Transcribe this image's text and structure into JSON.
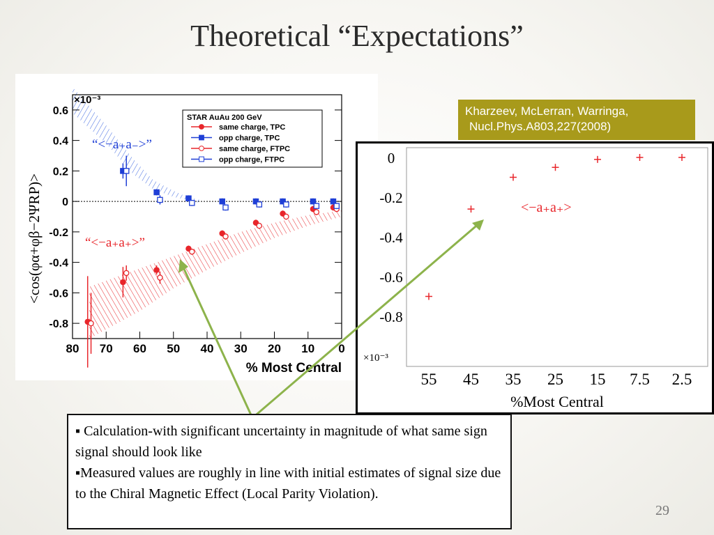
{
  "slide": {
    "title": "Theoretical “Expectations”",
    "page_number": "29",
    "reference": {
      "line1": "Kharzeev, McLerran, Warringa,",
      "line2": "Nucl.Phys.A803,227(2008)"
    },
    "notes": [
      "▪ Calculation-with significant uncertainty in magnitude of what same sign signal should look like",
      "▪Measured values are roughly in line with initial estimates of signal size due to the Chiral Magnetic Effect (Local Parity Violation)."
    ],
    "colors": {
      "reference_bg": "#a89a1b",
      "same_charge": "#e8262b",
      "opp_charge": "#1f3fd6",
      "arrow": "#8db34b"
    }
  },
  "chart_data": [
    {
      "type": "scatter",
      "ylabel": "<cos(φα+φβ−2ΨRP)>",
      "xlabel": "% Most Central",
      "y_multiplier_label": "×10⁻³",
      "xlim": [
        80,
        0
      ],
      "ylim": [
        -0.9,
        0.7
      ],
      "x_ticks": [
        "80",
        "70",
        "60",
        "50",
        "40",
        "30",
        "20",
        "10",
        "0"
      ],
      "y_ticks": [
        "0.6",
        "0.4",
        "0.2",
        "0",
        "-0.2",
        "-0.4",
        "-0.6",
        "-0.8"
      ],
      "legend": {
        "title": "STAR  AuAu 200 GeV",
        "entries": [
          "same charge, TPC",
          "opp charge, TPC",
          "same charge, FTPC",
          "opp charge, FTPC"
        ]
      },
      "annotations": {
        "opp": "“<−a₊a₋>”",
        "same": "“<−a₊a₊>”"
      },
      "series": [
        {
          "name": "same charge, TPC",
          "x": [
            75.5,
            65,
            55,
            45.5,
            35.5,
            25.5,
            17.5,
            8.5,
            2.5
          ],
          "y": [
            -0.79,
            -0.53,
            -0.45,
            -0.31,
            -0.21,
            -0.14,
            -0.08,
            -0.05,
            -0.04
          ]
        },
        {
          "name": "opp charge, TPC",
          "x": [
            65,
            55,
            45.5,
            35.5,
            25.5,
            17.5,
            8.5,
            2.5
          ],
          "y": [
            0.2,
            0.06,
            0.02,
            0.0,
            0.0,
            0.0,
            0.0,
            0.0
          ]
        },
        {
          "name": "same charge, FTPC",
          "x": [
            74.5,
            64,
            54,
            44.5,
            34.5,
            24.5,
            16.5,
            7.5,
            1.5
          ],
          "y": [
            -0.8,
            -0.47,
            -0.5,
            -0.33,
            -0.23,
            -0.16,
            -0.1,
            -0.07,
            -0.05
          ]
        },
        {
          "name": "opp charge, FTPC",
          "x": [
            64,
            54,
            44.5,
            34.5,
            24.5,
            16.5,
            7.5,
            1.5
          ],
          "y": [
            0.2,
            0.01,
            -0.01,
            -0.04,
            -0.02,
            -0.02,
            -0.03,
            -0.03
          ]
        }
      ]
    },
    {
      "type": "scatter",
      "xlabel": "%Most Central",
      "y_multiplier_label": "×10⁻³",
      "categories": [
        "55",
        "45",
        "35",
        "25",
        "15",
        "7.5",
        "2.5"
      ],
      "y_ticks": [
        "0",
        "-0.2",
        "-0.4",
        "-0.6",
        "-0.8"
      ],
      "ylim": [
        -0.9,
        0.05
      ],
      "annotation": "<−a₊a₊>",
      "values": [
        -0.7,
        -0.26,
        -0.1,
        -0.05,
        -0.01,
        0.0,
        0.0
      ]
    }
  ]
}
